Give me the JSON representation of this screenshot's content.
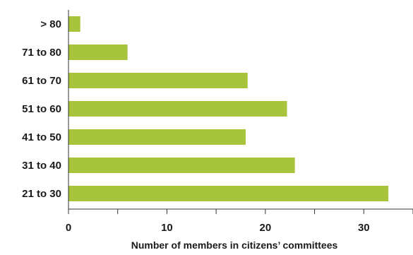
{
  "chart_data": {
    "type": "bar",
    "orientation": "horizontal",
    "categories": [
      "21 to 30",
      "31 to 40",
      "41 to 50",
      "51 to 60",
      "61 to 70",
      "71 to 80",
      "> 80"
    ],
    "values": [
      32.5,
      23,
      18,
      22.2,
      18.2,
      6,
      1.2
    ],
    "xlabel": "Number of members in citizens’ committees",
    "ylabel": "",
    "title": "",
    "xlim": [
      0,
      35
    ],
    "xticks": [
      0,
      10,
      20,
      30
    ],
    "grid": false,
    "legend": "none",
    "bar_color": "#a8c43c"
  }
}
